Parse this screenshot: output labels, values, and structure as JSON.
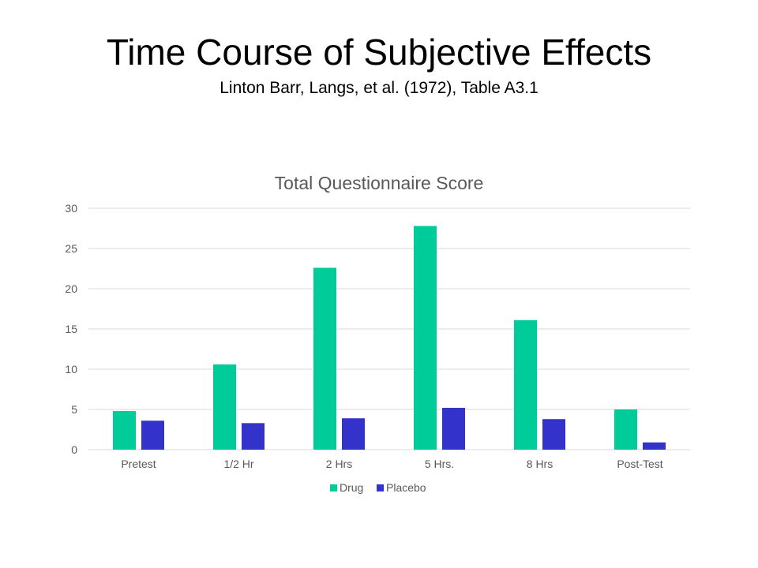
{
  "slide": {
    "title": "Time Course of Subjective Effects",
    "subtitle": "Linton Barr, Langs, et al. (1972), Table A3.1"
  },
  "colors": {
    "drug": "#00CC99",
    "placebo": "#3333CC",
    "grid": "#D9D9D9",
    "text": "#595959"
  },
  "chart_data": {
    "type": "bar",
    "title": "Total Questionnaire Score",
    "xlabel": "",
    "ylabel": "",
    "categories": [
      "Pretest",
      "1/2 Hr",
      "2 Hrs",
      "5 Hrs.",
      "8 Hrs",
      "Post-Test"
    ],
    "series": [
      {
        "name": "Drug",
        "values": [
          4.8,
          10.6,
          22.6,
          27.8,
          16.1,
          5.0
        ]
      },
      {
        "name": "Placebo",
        "values": [
          3.6,
          3.3,
          3.9,
          5.2,
          3.8,
          0.9
        ]
      }
    ],
    "ylim": [
      0,
      30
    ],
    "yticks": [
      0,
      5,
      10,
      15,
      20,
      25,
      30
    ],
    "grid": true,
    "legend": "bottom"
  }
}
